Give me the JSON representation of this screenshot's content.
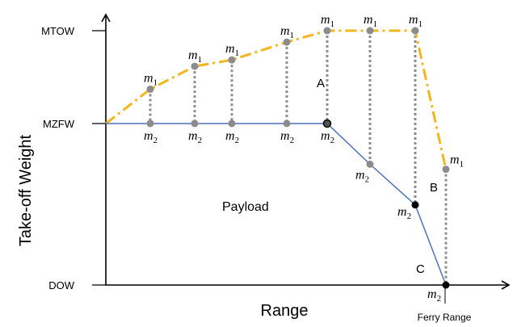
{
  "diagram": {
    "y_ticks": [
      {
        "id": "mtow",
        "label": "MTOW",
        "level": 1.0
      },
      {
        "id": "mzfw",
        "label": "MZFW",
        "level": 0.635
      },
      {
        "id": "dow",
        "label": "DOW",
        "level": 0.0
      }
    ],
    "y_axis_title": "Take-off Weight",
    "x_axis_title": "Range",
    "ferry_range_label": "Ferry Range",
    "payload_label": "Payload",
    "point_labels": {
      "a": "A",
      "b": "B",
      "c": "C"
    },
    "mass_symbol": "m",
    "upper_subscript": "1",
    "lower_subscript": "2",
    "sample_points": [
      {
        "m1": 0.77,
        "m2": 0.635
      },
      {
        "m1": 0.86,
        "m2": 0.635
      },
      {
        "m1": 0.885,
        "m2": 0.635
      },
      {
        "m1": 0.955,
        "m2": 0.635
      },
      {
        "m1": 1.0,
        "m2": 0.635
      },
      {
        "m1": 1.0,
        "m2": 0.475
      },
      {
        "m1": 1.0,
        "m2": 0.315
      },
      {
        "m1": 0.455,
        "m2": 0.0
      }
    ],
    "colors": {
      "upper_line": "#F2B61C",
      "lower_line": "#4A72B8",
      "dotted": "#8C8C8C",
      "marker": "#8C8C8C",
      "key_marker": "#000000"
    }
  }
}
